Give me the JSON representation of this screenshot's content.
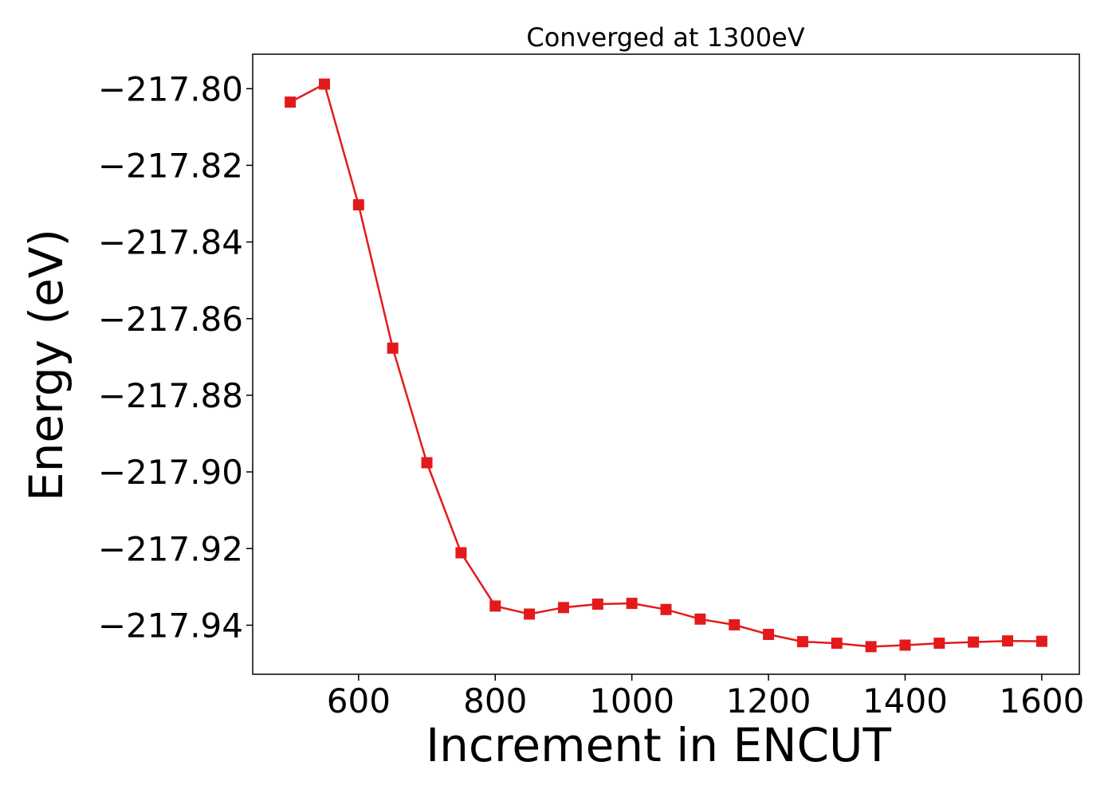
{
  "chart_data": {
    "type": "line",
    "title": "Converged at 1300eV",
    "xlabel": "Increment in ENCUT",
    "ylabel": "Energy (eV)",
    "xlim": [
      445,
      1655
    ],
    "ylim": [
      -217.9528,
      -217.791
    ],
    "xticks": [
      600,
      800,
      1000,
      1200,
      1400,
      1600
    ],
    "xtick_labels": [
      "600",
      "800",
      "1000",
      "1200",
      "1400",
      "1600"
    ],
    "yticks": [
      -217.8,
      -217.82,
      -217.84,
      -217.86,
      -217.88,
      -217.9,
      -217.92,
      -217.94
    ],
    "ytick_labels": [
      "−217.80",
      "−217.82",
      "−217.84",
      "−217.86",
      "−217.88",
      "−217.90",
      "−217.92",
      "−217.94"
    ],
    "grid": false,
    "legend": false,
    "series": [
      {
        "color": "#e31a1c",
        "marker": "square",
        "x": [
          500,
          550,
          600,
          650,
          700,
          750,
          800,
          850,
          900,
          950,
          1000,
          1050,
          1100,
          1150,
          1200,
          1250,
          1300,
          1350,
          1400,
          1450,
          1500,
          1550,
          1600
        ],
        "y": [
          -217.8035,
          -217.7988,
          -217.8303,
          -217.8677,
          -217.8976,
          -217.9211,
          -217.935,
          -217.9371,
          -217.9354,
          -217.9345,
          -217.9343,
          -217.9359,
          -217.9384,
          -217.9399,
          -217.9424,
          -217.9443,
          -217.9447,
          -217.9456,
          -217.9452,
          -217.9447,
          -217.9444,
          -217.9441,
          -217.9442
        ]
      }
    ]
  }
}
